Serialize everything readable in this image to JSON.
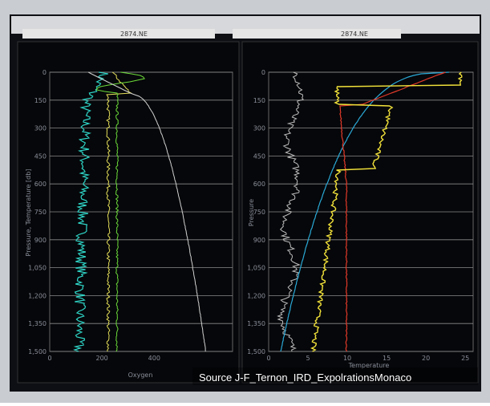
{
  "toolbar": {
    "left_title": "2874.NE",
    "right_title": "2874.NE"
  },
  "left_panel": {
    "y_axis_label": "Pressure, Temperature [db]",
    "x_axis_label": "Oxygen",
    "y_ticks": [
      "0",
      "150",
      "300",
      "450",
      "600",
      "750",
      "900",
      "1,050",
      "1,200",
      "1,350",
      "1,500"
    ],
    "x_ticks": [
      "0",
      "200",
      "400"
    ]
  },
  "right_panel": {
    "y_axis_label": "Pressure",
    "x_axis_label": "Temperature",
    "y_ticks": [
      "0",
      "150",
      "300",
      "450",
      "600",
      "750",
      "900",
      "1,050",
      "1,200",
      "1,350",
      "1,500"
    ],
    "x_ticks": [
      "0",
      "5",
      "10",
      "15",
      "20",
      "25"
    ]
  },
  "caption": "Source J-F_Ternon_IRD_ExpolrationsMonaco"
}
